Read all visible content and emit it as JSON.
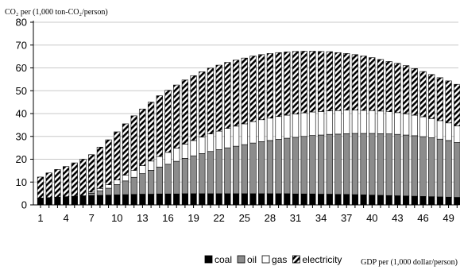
{
  "chart_data": {
    "type": "bar",
    "stacked": true,
    "title": "",
    "ylabel": "CO₂ per (1,000 ton-CO₂/person)",
    "xlabel": "GDP per (1,000 dollar/person)",
    "ylim": [
      0,
      80
    ],
    "yticks": [
      "0",
      "10",
      "20",
      "30",
      "40",
      "50",
      "60",
      "70",
      "80"
    ],
    "xtick_labels": [
      "1",
      "4",
      "7",
      "10",
      "13",
      "16",
      "19",
      "22",
      "25",
      "28",
      "31",
      "34",
      "37",
      "40",
      "43",
      "46",
      "49"
    ],
    "x": [
      1,
      2,
      3,
      4,
      5,
      6,
      7,
      8,
      9,
      10,
      11,
      12,
      13,
      14,
      15,
      16,
      17,
      18,
      19,
      20,
      21,
      22,
      23,
      24,
      25,
      26,
      27,
      28,
      29,
      30,
      31,
      32,
      33,
      34,
      35,
      36,
      37,
      38,
      39,
      40,
      41,
      42,
      43,
      44,
      45,
      46,
      47,
      48,
      49,
      50
    ],
    "grid": "horizontal",
    "legend_position": "bottom-right",
    "series": [
      {
        "name": "coal",
        "fill": "#000000",
        "pattern": "solid",
        "values": [
          3.0,
          3.2,
          3.4,
          3.6,
          3.8,
          4.0,
          4.1,
          4.2,
          4.3,
          4.4,
          4.5,
          4.6,
          4.7,
          4.7,
          4.8,
          4.8,
          4.8,
          4.9,
          4.9,
          4.9,
          4.9,
          4.9,
          4.9,
          4.9,
          4.9,
          4.9,
          4.9,
          4.9,
          4.9,
          4.9,
          4.8,
          4.8,
          4.8,
          4.7,
          4.7,
          4.6,
          4.6,
          4.5,
          4.4,
          4.3,
          4.2,
          4.1,
          4.0,
          3.9,
          3.8,
          3.7,
          3.6,
          3.5,
          3.4,
          3.3
        ]
      },
      {
        "name": "oil",
        "fill": "#8c8c8c",
        "pattern": "solid",
        "values": [
          0.0,
          0.0,
          0.0,
          0.0,
          0.0,
          0.0,
          1.0,
          2.0,
          3.0,
          4.5,
          6.0,
          7.5,
          9.0,
          10.5,
          11.8,
          13.0,
          14.3,
          15.5,
          16.6,
          17.6,
          18.5,
          19.3,
          20.1,
          20.8,
          21.5,
          22.2,
          22.8,
          23.3,
          23.8,
          24.3,
          24.8,
          25.2,
          25.6,
          25.9,
          26.2,
          26.4,
          26.6,
          26.8,
          26.9,
          27.0,
          27.0,
          27.0,
          26.9,
          26.7,
          26.5,
          26.2,
          25.8,
          25.3,
          24.8,
          24.0
        ]
      },
      {
        "name": "gas",
        "fill": "#ffffff",
        "pattern": "solid",
        "values": [
          0.0,
          0.0,
          0.0,
          0.0,
          0.0,
          0.0,
          0.5,
          1.0,
          1.5,
          2.0,
          2.5,
          3.0,
          3.5,
          4.0,
          4.6,
          5.2,
          5.7,
          6.2,
          6.7,
          7.2,
          7.7,
          8.1,
          8.5,
          8.8,
          9.1,
          9.4,
          9.6,
          9.8,
          10.0,
          10.1,
          10.2,
          10.3,
          10.3,
          10.3,
          10.3,
          10.3,
          10.3,
          10.2,
          10.1,
          10.0,
          9.9,
          9.7,
          9.5,
          9.3,
          9.0,
          8.7,
          8.4,
          8.1,
          7.7,
          7.3
        ]
      },
      {
        "name": "electricity",
        "fill": "#ffffff",
        "pattern": "diagonal",
        "values": [
          9.2,
          10.8,
          12.1,
          13.2,
          14.6,
          16.0,
          16.4,
          18.1,
          19.7,
          21.1,
          22.5,
          23.9,
          24.8,
          25.8,
          26.6,
          27.2,
          27.7,
          28.1,
          28.4,
          28.6,
          28.8,
          28.9,
          28.9,
          28.9,
          28.8,
          28.7,
          28.5,
          28.3,
          28.0,
          27.7,
          27.4,
          27.0,
          26.6,
          26.3,
          25.9,
          25.4,
          24.8,
          24.3,
          23.8,
          23.2,
          22.6,
          22.0,
          21.6,
          21.1,
          20.4,
          19.8,
          19.3,
          18.8,
          18.4,
          18.2
        ]
      }
    ]
  }
}
